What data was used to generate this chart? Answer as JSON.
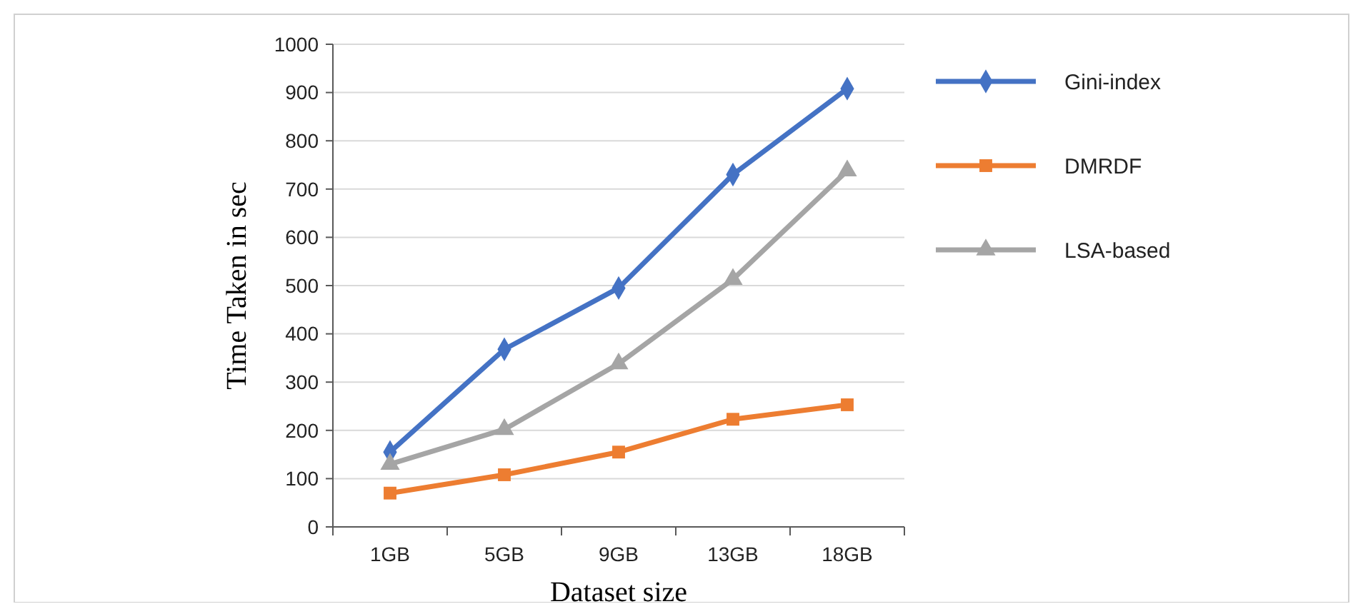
{
  "chart_data": {
    "type": "line",
    "xlabel": "Dataset size",
    "ylabel": "Time Taken in sec",
    "categories": [
      "1GB",
      "5GB",
      "9GB",
      "13GB",
      "18GB"
    ],
    "series": [
      {
        "name": "Gini-index",
        "color": "#4472c4",
        "values": [
          155,
          368,
          495,
          730,
          908
        ],
        "marker": "diamond"
      },
      {
        "name": "DMRDF",
        "color": "#ed7d31",
        "values": [
          70,
          108,
          155,
          223,
          253
        ],
        "marker": "square"
      },
      {
        "name": "LSA-based",
        "color": "#a5a5a5",
        "values": [
          130,
          202,
          338,
          513,
          738
        ],
        "marker": "triangle"
      }
    ],
    "ylim": [
      0,
      1000
    ],
    "yticks": [
      0,
      100,
      200,
      300,
      400,
      500,
      600,
      700,
      800,
      900,
      1000
    ],
    "grid": "y",
    "legend": "right",
    "line_style": "solid"
  }
}
